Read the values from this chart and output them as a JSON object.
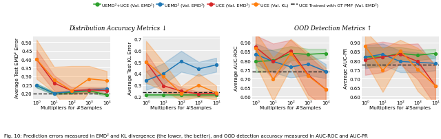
{
  "x_labels": [
    "10⁰",
    "10¹",
    "10²",
    "10³",
    "10⁴"
  ],
  "legend_labels": [
    "UEMD²+UCE (Val. EMD²)",
    "UEMD² (Val. EMD²)",
    "UCE (Val. EMD²)",
    "UCE (Val. KL)",
    "UCE Trained with GT PMF (Val. EMD²)"
  ],
  "colors": {
    "green": "#2ca02c",
    "blue": "#1f77b4",
    "red": "#d62728",
    "orange": "#ff7f0e",
    "dashed_black": "#222222"
  },
  "dist_title": "Distribution Accuracy Metrics ↓",
  "ood_title": "OOD Detection Metrics ↑",
  "plot1_ylabel": "Average Test EMD² Error",
  "plot1_ylim": [
    0.165,
    0.535
  ],
  "plot1_yticks": [
    0.2,
    0.25,
    0.3,
    0.35,
    0.4,
    0.45,
    0.5
  ],
  "plot1_green_mean": [
    0.245,
    0.2,
    0.205,
    0.215,
    0.19
  ],
  "plot1_green_std": [
    0.012,
    0.008,
    0.008,
    0.01,
    0.008
  ],
  "plot1_blue_mean": [
    0.245,
    0.2,
    0.21,
    0.22,
    0.225
  ],
  "plot1_blue_std": [
    0.012,
    0.008,
    0.008,
    0.01,
    0.01
  ],
  "plot1_red_mean": [
    0.4,
    0.26,
    0.215,
    0.22,
    0.215
  ],
  "plot1_red_std": [
    0.055,
    0.045,
    0.02,
    0.015,
    0.015
  ],
  "plot1_orange_mean": [
    0.4,
    0.28,
    0.215,
    0.285,
    0.275
  ],
  "plot1_orange_std": [
    0.115,
    0.075,
    0.145,
    0.075,
    0.055
  ],
  "plot1_dashed": 0.197,
  "plot2_ylabel": "Average Test KL Error",
  "plot2_ylim": [
    0.18,
    0.72
  ],
  "plot2_yticks": [
    0.2,
    0.3,
    0.4,
    0.5,
    0.6,
    0.7
  ],
  "plot2_green_mean": [
    0.215,
    0.215,
    0.215,
    0.215,
    0.215
  ],
  "plot2_green_std": [
    0.015,
    0.015,
    0.015,
    0.015,
    0.015
  ],
  "plot2_blue_mean": [
    0.34,
    0.4,
    0.505,
    0.44,
    0.475
  ],
  "plot2_blue_std": [
    0.08,
    0.09,
    0.09,
    0.06,
    0.06
  ],
  "plot2_red_mean": [
    0.5,
    0.295,
    0.25,
    0.225,
    0.23
  ],
  "plot2_red_std": [
    0.08,
    0.06,
    0.03,
    0.02,
    0.02
  ],
  "plot2_orange_mean": [
    0.5,
    0.375,
    0.23,
    0.3,
    0.235
  ],
  "plot2_orange_std": [
    0.18,
    0.12,
    0.06,
    0.1,
    0.06
  ],
  "plot2_dashed": 0.242,
  "plot3_ylabel": "Average AUC-ROC",
  "plot3_ylim": [
    0.585,
    0.935
  ],
  "plot3_yticks": [
    0.6,
    0.65,
    0.7,
    0.75,
    0.8,
    0.85,
    0.9
  ],
  "plot3_green_mean": [
    0.795,
    0.8,
    0.84,
    0.835,
    0.84
  ],
  "plot3_green_std": [
    0.06,
    0.06,
    0.04,
    0.03,
    0.025
  ],
  "plot3_blue_mean": [
    0.835,
    0.795,
    0.765,
    0.78,
    0.74
  ],
  "plot3_blue_std": [
    0.06,
    0.06,
    0.06,
    0.06,
    0.04
  ],
  "plot3_red_mean": [
    0.875,
    0.795,
    0.855,
    0.72,
    0.64
  ],
  "plot3_red_std": [
    0.065,
    0.1,
    0.06,
    0.11,
    0.1
  ],
  "plot3_orange_mean": [
    0.87,
    0.695,
    0.84,
    0.715,
    0.64
  ],
  "plot3_orange_std": [
    0.09,
    0.12,
    0.08,
    0.13,
    0.12
  ],
  "plot3_dashed": 0.738,
  "plot4_ylabel": "Average AUC-PR",
  "plot4_ylim": [
    0.585,
    0.935
  ],
  "plot4_yticks": [
    0.6,
    0.65,
    0.7,
    0.75,
    0.8,
    0.85,
    0.9
  ],
  "plot4_green_mean": [
    0.82,
    0.82,
    0.84,
    0.83,
    0.84
  ],
  "plot4_green_std": [
    0.055,
    0.055,
    0.035,
    0.03,
    0.025
  ],
  "plot4_blue_mean": [
    0.82,
    0.835,
    0.795,
    0.79,
    0.785
  ],
  "plot4_blue_std": [
    0.065,
    0.06,
    0.06,
    0.055,
    0.04
  ],
  "plot4_red_mean": [
    0.805,
    0.82,
    0.835,
    0.795,
    0.66
  ],
  "plot4_red_std": [
    0.085,
    0.085,
    0.055,
    0.1,
    0.11
  ],
  "plot4_orange_mean": [
    0.88,
    0.745,
    0.855,
    0.75,
    0.66
  ],
  "plot4_orange_std": [
    0.085,
    0.12,
    0.06,
    0.12,
    0.12
  ],
  "plot4_dashed": 0.778,
  "xlabel": "Multipliers for #Samples",
  "caption": "Fig. 10: Prediction errors measured in EMD² and KL divergence (the lower, the better), and OOD detection accuracy measured in AUC-ROC and AUC-PR"
}
